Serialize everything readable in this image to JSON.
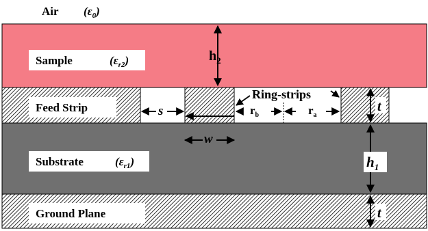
{
  "air": {
    "label": "Air",
    "eps": "ε",
    "eps_sub": "0"
  },
  "sample": {
    "label": "Sample",
    "eps": "ε",
    "eps_sub": "r2",
    "height_label": "h",
    "height_sub": "2"
  },
  "feed_strip": {
    "label": "Feed Strip"
  },
  "substrate": {
    "label": "Substrate",
    "eps": "ε",
    "eps_sub": "r1",
    "height_label": "h",
    "height_sub": "1"
  },
  "ground_plane": {
    "label": "Ground Plane"
  },
  "dims": {
    "s": "s",
    "w": "w",
    "t_top": "t",
    "t_bottom": "t",
    "rb": "r",
    "rb_sub": "b",
    "ra": "r",
    "ra_sub": "a"
  },
  "ring_strips": {
    "label": "Ring-strips"
  },
  "colors": {
    "sample": "#f57c86",
    "substrate": "#707070",
    "hatch": "#000000",
    "label_box": "#ffffff"
  }
}
